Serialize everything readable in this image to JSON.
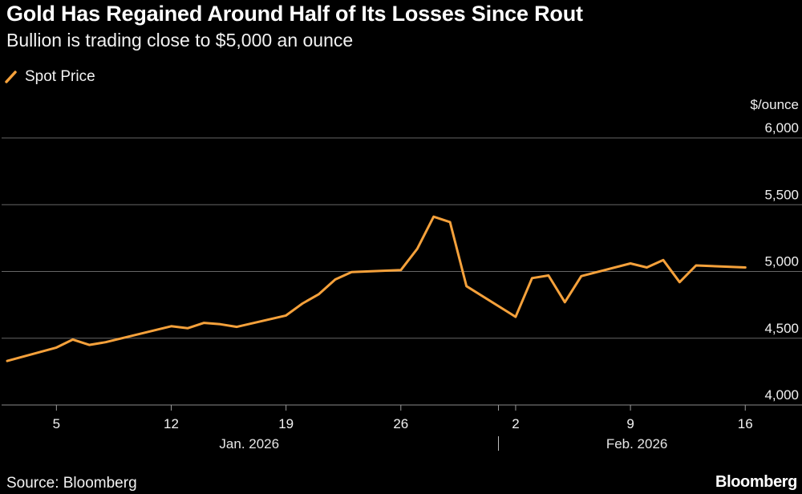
{
  "title": "Gold Has Regained Around Half of Its Losses Since Rout",
  "subtitle": "Bullion is trading close to $5,000 an ounce",
  "source": "Source: Bloomberg",
  "brand": "Bloomberg",
  "colors": {
    "background": "#000000",
    "line": "#f5a13b",
    "grid": "#666666",
    "text": "#ffffff"
  },
  "chart_data": {
    "type": "line",
    "title": "Gold Has Regained Around Half of Its Losses Since Rout",
    "subtitle": "Bullion is trading close to $5,000 an ounce",
    "ylabel": "$/ounce",
    "ylim": [
      4000,
      6000
    ],
    "y_ticks": [
      4000,
      4500,
      5000,
      5500,
      6000
    ],
    "y_tick_labels": [
      "4,000",
      "4,500",
      "5,000",
      "5,500",
      "6,000"
    ],
    "y_axis_position": "right",
    "grid": true,
    "legend_position": "top-left",
    "x_range": [
      "2026-01-02",
      "2026-02-17"
    ],
    "x_ticks": [
      {
        "date": "2026-01-05",
        "label": "5"
      },
      {
        "date": "2026-01-12",
        "label": "12"
      },
      {
        "date": "2026-01-19",
        "label": "19"
      },
      {
        "date": "2026-01-26",
        "label": "26"
      },
      {
        "date": "2026-02-02",
        "label": "2"
      },
      {
        "date": "2026-02-09",
        "label": "9"
      },
      {
        "date": "2026-02-16",
        "label": "16"
      }
    ],
    "month_labels": [
      {
        "label": "Jan. 2026",
        "start": "2026-01-02",
        "end": "2026-02-01"
      },
      {
        "label": "Feb. 2026",
        "start": "2026-02-01",
        "end": "2026-02-17"
      }
    ],
    "month_divider": "2026-02-01",
    "series": [
      {
        "name": "Spot Price",
        "color": "#f5a13b",
        "points": [
          {
            "x": "2026-01-02",
            "y": 4330
          },
          {
            "x": "2026-01-05",
            "y": 4430
          },
          {
            "x": "2026-01-06",
            "y": 4490
          },
          {
            "x": "2026-01-07",
            "y": 4450
          },
          {
            "x": "2026-01-08",
            "y": 4470
          },
          {
            "x": "2026-01-12",
            "y": 4590
          },
          {
            "x": "2026-01-13",
            "y": 4575
          },
          {
            "x": "2026-01-14",
            "y": 4615
          },
          {
            "x": "2026-01-15",
            "y": 4605
          },
          {
            "x": "2026-01-16",
            "y": 4585
          },
          {
            "x": "2026-01-19",
            "y": 4670
          },
          {
            "x": "2026-01-20",
            "y": 4760
          },
          {
            "x": "2026-01-21",
            "y": 4830
          },
          {
            "x": "2026-01-22",
            "y": 4940
          },
          {
            "x": "2026-01-23",
            "y": 4995
          },
          {
            "x": "2026-01-26",
            "y": 5010
          },
          {
            "x": "2026-01-27",
            "y": 5170
          },
          {
            "x": "2026-01-28",
            "y": 5410
          },
          {
            "x": "2026-01-29",
            "y": 5370
          },
          {
            "x": "2026-01-30",
            "y": 4890
          },
          {
            "x": "2026-02-02",
            "y": 4660
          },
          {
            "x": "2026-02-03",
            "y": 4950
          },
          {
            "x": "2026-02-04",
            "y": 4970
          },
          {
            "x": "2026-02-05",
            "y": 4770
          },
          {
            "x": "2026-02-06",
            "y": 4965
          },
          {
            "x": "2026-02-09",
            "y": 5060
          },
          {
            "x": "2026-02-10",
            "y": 5030
          },
          {
            "x": "2026-02-11",
            "y": 5085
          },
          {
            "x": "2026-02-12",
            "y": 4920
          },
          {
            "x": "2026-02-13",
            "y": 5045
          },
          {
            "x": "2026-02-16",
            "y": 5030
          }
        ]
      }
    ]
  }
}
